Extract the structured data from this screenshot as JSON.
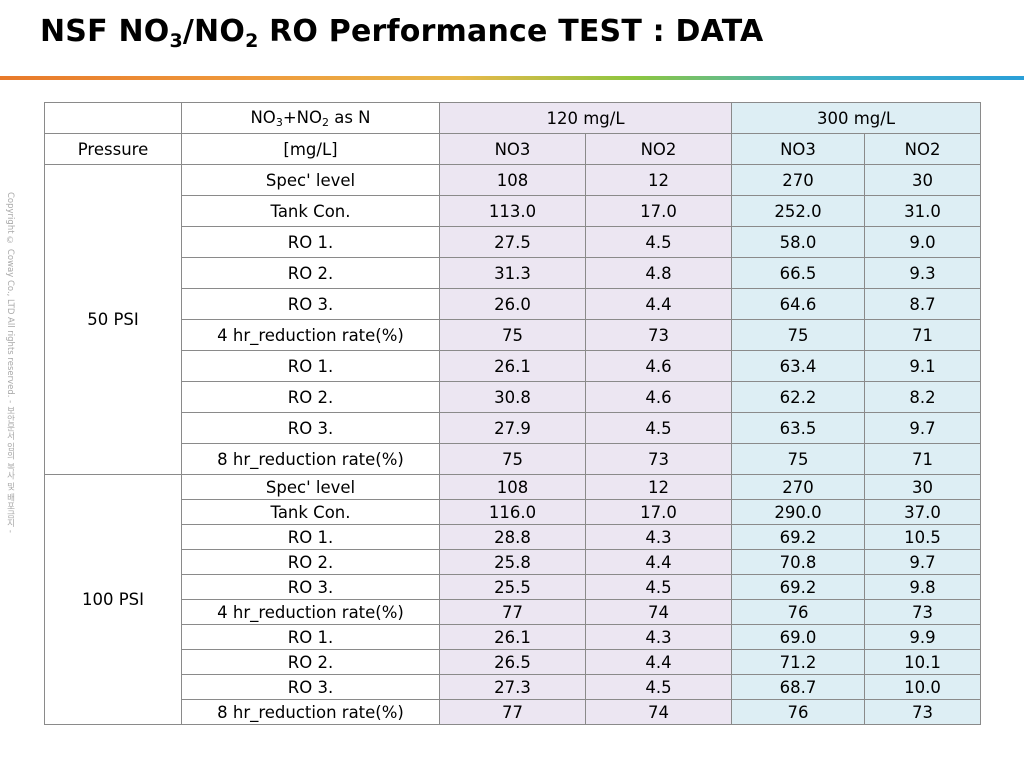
{
  "title": {
    "prefix": "NSF NO",
    "sub1": "3",
    "mid": "/NO",
    "sub2": "2",
    "suffix": " RO Performance TEST : DATA"
  },
  "copyright": "Copyright © Coway Co., LTD All rights reserved. - 보안문서 임의 복사 및 배포금지 -",
  "table": {
    "header": {
      "param_prefix": "NO",
      "param_sub1": "3",
      "param_mid": "+NO",
      "param_sub2": "2",
      "param_suffix": " as N",
      "group_120": "120 mg/L",
      "group_300": "300 mg/L",
      "pressure": "Pressure",
      "unit": "[mg/L]",
      "no3_a": "NO3",
      "no2_a": "NO2",
      "no3_b": "NO3",
      "no2_b": "NO2"
    },
    "sections": [
      {
        "pressure": "50 PSI",
        "rows": [
          {
            "label": "Spec' level",
            "v": [
              "108",
              "12",
              "270",
              "30"
            ]
          },
          {
            "label": "Tank Con.",
            "v": [
              "113.0",
              "17.0",
              "252.0",
              "31.0"
            ]
          },
          {
            "label": "RO 1.",
            "v": [
              "27.5",
              "4.5",
              "58.0",
              "9.0"
            ]
          },
          {
            "label": "RO 2.",
            "v": [
              "31.3",
              "4.8",
              "66.5",
              "9.3"
            ]
          },
          {
            "label": "RO 3.",
            "v": [
              "26.0",
              "4.4",
              "64.6",
              "8.7"
            ]
          },
          {
            "label": "4 hr_reduction rate(%)",
            "v": [
              "75",
              "73",
              "75",
              "71"
            ]
          },
          {
            "label": "RO 1.",
            "v": [
              "26.1",
              "4.6",
              "63.4",
              "9.1"
            ]
          },
          {
            "label": "RO 2.",
            "v": [
              "30.8",
              "4.6",
              "62.2",
              "8.2"
            ]
          },
          {
            "label": "RO 3.",
            "v": [
              "27.9",
              "4.5",
              "63.5",
              "9.7"
            ]
          },
          {
            "label": "8 hr_reduction rate(%)",
            "v": [
              "75",
              "73",
              "75",
              "71"
            ]
          }
        ]
      },
      {
        "pressure": "100 PSI",
        "rows": [
          {
            "label": "Spec' level",
            "v": [
              "108",
              "12",
              "270",
              "30"
            ]
          },
          {
            "label": "Tank Con.",
            "v": [
              "116.0",
              "17.0",
              "290.0",
              "37.0"
            ]
          },
          {
            "label": "RO 1.",
            "v": [
              "28.8",
              "4.3",
              "69.2",
              "10.5"
            ]
          },
          {
            "label": "RO 2.",
            "v": [
              "25.8",
              "4.4",
              "70.8",
              "9.7"
            ]
          },
          {
            "label": "RO 3.",
            "v": [
              "25.5",
              "4.5",
              "69.2",
              "9.8"
            ]
          },
          {
            "label": "4 hr_reduction rate(%)",
            "v": [
              "77",
              "74",
              "76",
              "73"
            ]
          },
          {
            "label": "RO 1.",
            "v": [
              "26.1",
              "4.3",
              "69.0",
              "9.9"
            ]
          },
          {
            "label": "RO 2.",
            "v": [
              "26.5",
              "4.4",
              "71.2",
              "10.1"
            ]
          },
          {
            "label": "RO 3.",
            "v": [
              "27.3",
              "4.5",
              "68.7",
              "10.0"
            ]
          },
          {
            "label": "8 hr_reduction rate(%)",
            "v": [
              "77",
              "74",
              "76",
              "73"
            ]
          }
        ]
      }
    ]
  },
  "colors": {
    "group_120_bg": "#ece6f2",
    "group_300_bg": "#ddeef4",
    "border": "#8a8a8a",
    "title_bar_start": "#e8792a",
    "title_bar_end": "#2a9fd8"
  }
}
